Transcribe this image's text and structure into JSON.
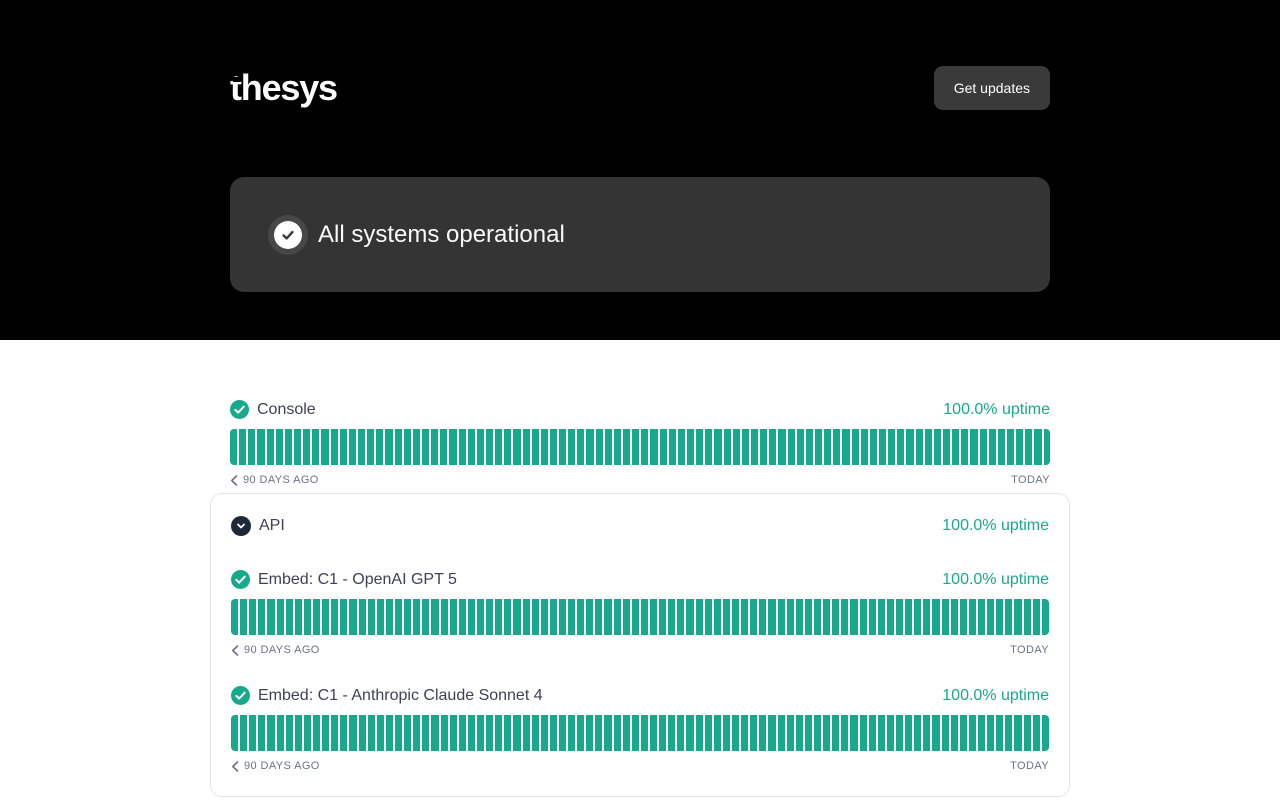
{
  "header": {
    "logo_text": "thesys",
    "get_updates_label": "Get updates",
    "banner_message": "All systems operational",
    "banner_icon": "check-circle-icon"
  },
  "timeline": {
    "days": 90,
    "left_label": "90 DAYS AGO",
    "right_label": "TODAY",
    "left_icon": "chevron-left-icon"
  },
  "components": [
    {
      "name": "Console",
      "uptime": "100.0% uptime",
      "status": "operational",
      "status_icon": "check-circle-icon"
    },
    {
      "name": "API",
      "uptime": "100.0% uptime",
      "status": "operational",
      "group_icon": "chevron-down-circle-icon",
      "children": [
        {
          "name": "Embed: C1 - OpenAI GPT 5",
          "uptime": "100.0% uptime",
          "status": "operational",
          "status_icon": "check-circle-icon"
        },
        {
          "name": "Embed: C1 - Anthropic Claude Sonnet 4",
          "uptime": "100.0% uptime",
          "status": "operational",
          "status_icon": "check-circle-icon"
        }
      ]
    }
  ],
  "colors": {
    "accent_green": "#18a98c",
    "hero_background": "#000000",
    "banner_background": "#343434",
    "banner_icon_ring": "#474747",
    "button_background": "#3a3a3a",
    "component_text": "#3c4257",
    "timeline_label_text": "#697386",
    "card_border": "#e3e6ec",
    "group_icon_background": "#1e2836"
  }
}
